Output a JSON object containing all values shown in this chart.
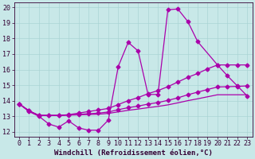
{
  "xlabel": "Windchill (Refroidissement éolien,°C)",
  "bg_color": "#c8e8e8",
  "line_color": "#aa00aa",
  "marker": "D",
  "xlim": [
    -0.5,
    23.5
  ],
  "ylim": [
    11.7,
    20.3
  ],
  "xticks": [
    0,
    1,
    2,
    3,
    4,
    5,
    6,
    7,
    8,
    9,
    10,
    11,
    12,
    13,
    14,
    15,
    16,
    17,
    18,
    19,
    20,
    21,
    22,
    23
  ],
  "yticks": [
    12,
    13,
    14,
    15,
    16,
    17,
    18,
    19,
    20
  ],
  "line1_y": [
    13.8,
    13.3,
    13.0,
    12.5,
    12.3,
    12.7,
    12.25,
    12.1,
    12.1,
    12.75,
    16.2,
    17.75,
    17.2,
    14.4,
    14.4,
    19.85,
    19.9,
    19.1,
    17.8,
    null,
    16.3,
    15.6,
    14.95,
    14.3
  ],
  "line2_y": [
    13.8,
    13.35,
    13.05,
    13.05,
    13.05,
    13.1,
    13.2,
    13.3,
    13.4,
    13.5,
    13.75,
    14.0,
    14.2,
    14.45,
    14.65,
    14.9,
    15.2,
    15.5,
    15.75,
    16.05,
    16.3,
    16.3,
    16.3,
    16.3
  ],
  "line3_y": [
    13.8,
    13.35,
    13.05,
    13.05,
    13.05,
    13.08,
    13.12,
    13.16,
    13.2,
    13.27,
    13.42,
    13.55,
    13.65,
    13.78,
    13.88,
    14.02,
    14.18,
    14.38,
    14.55,
    14.72,
    14.88,
    14.9,
    14.92,
    14.95
  ],
  "line4_y": [
    13.8,
    13.35,
    13.05,
    13.05,
    13.05,
    13.07,
    13.09,
    13.11,
    13.13,
    13.18,
    13.28,
    13.38,
    13.46,
    13.55,
    13.63,
    13.73,
    13.86,
    14.0,
    14.12,
    14.25,
    14.38,
    14.38,
    14.38,
    14.38
  ],
  "xlabel_fontsize": 6.5,
  "tick_fontsize": 6.0,
  "linewidth": 0.9,
  "markersize": 2.5,
  "grid_color": "#aad4d4"
}
